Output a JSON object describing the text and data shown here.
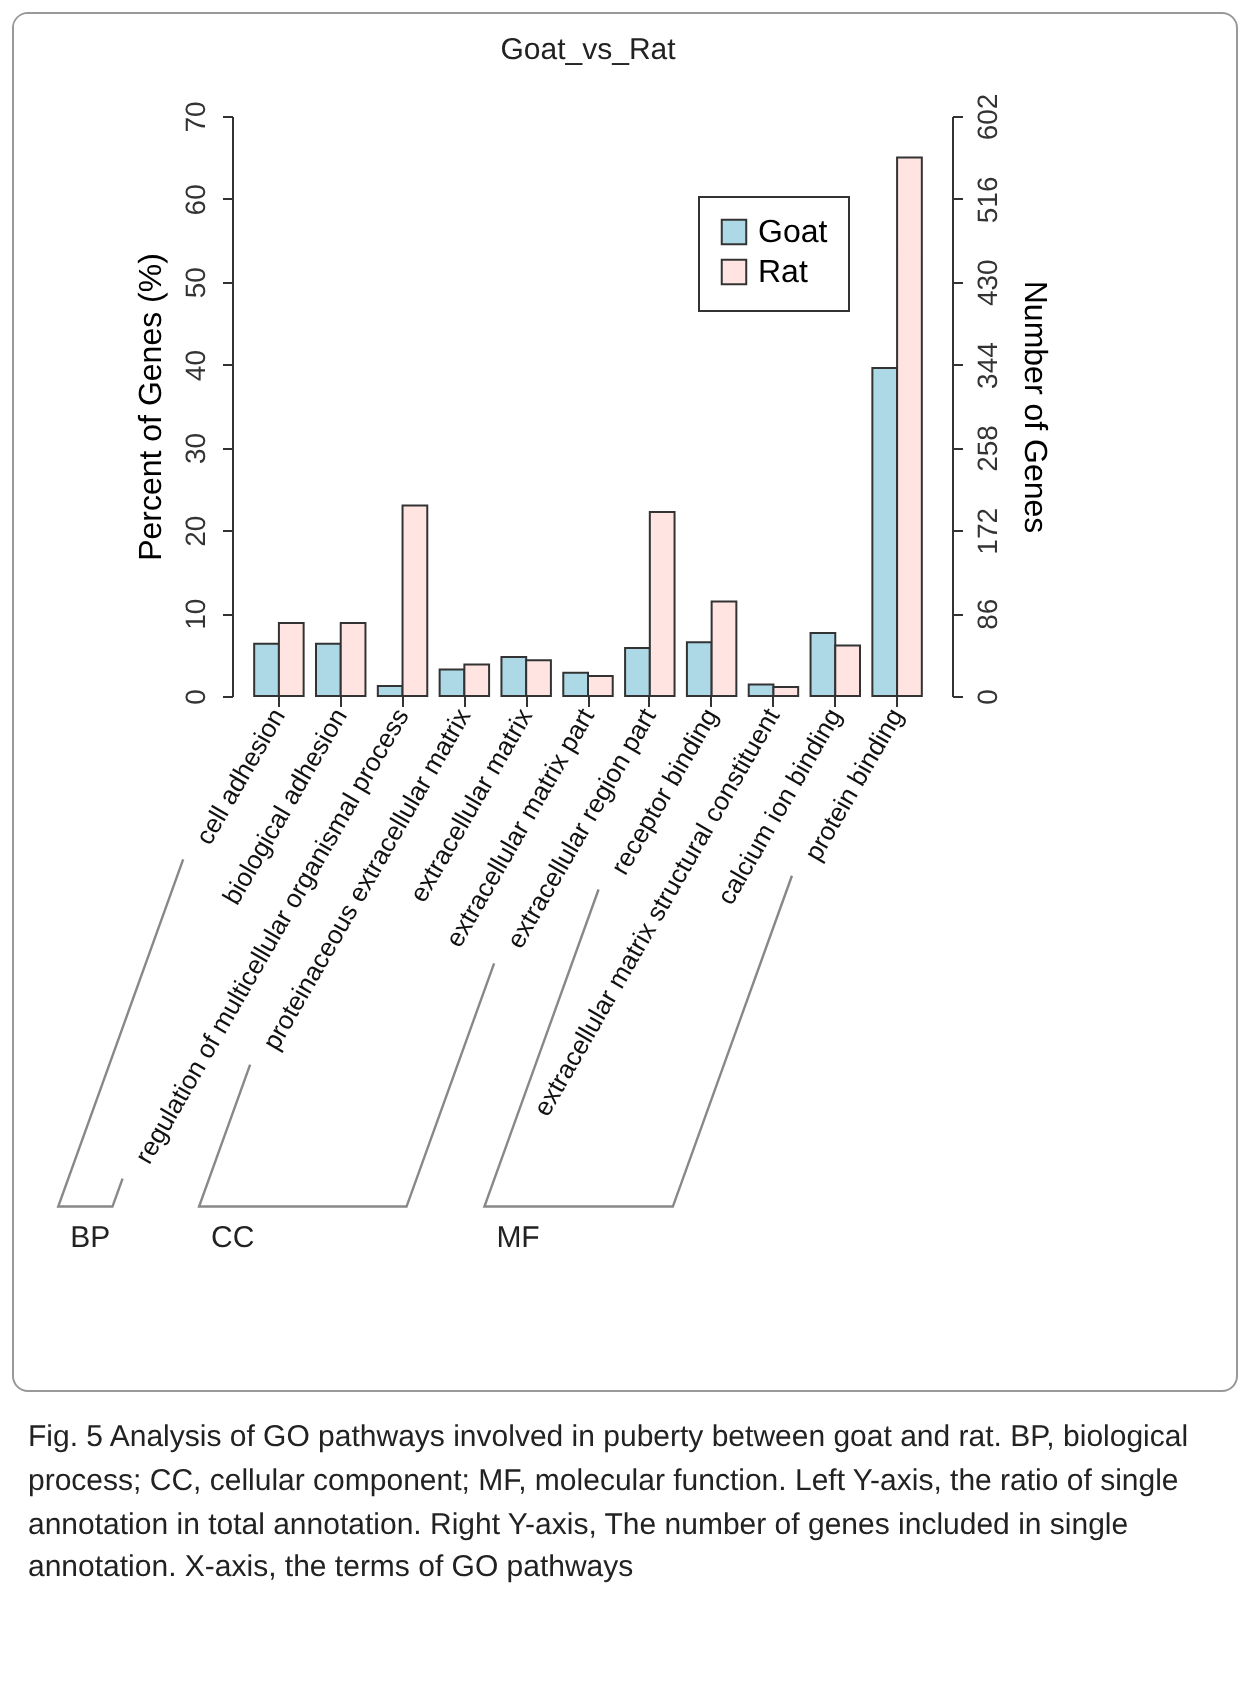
{
  "chart_data": {
    "type": "bar",
    "title": "Goat_vs_Rat",
    "categories": [
      "cell adhesion",
      "biological adhesion",
      "regulation of multicellular organismal process",
      "proteinaceous extracellular matrix",
      "extracellular matrix",
      "extracellular matrix part",
      "extracellular region part",
      "receptor binding",
      "extracellular matrix structural constituent",
      "calcium ion binding",
      "protein binding"
    ],
    "series": [
      {
        "name": "Goat",
        "color": "#add8e6",
        "values": [
          6.3,
          6.3,
          1.2,
          3.2,
          4.7,
          2.8,
          5.8,
          6.5,
          1.4,
          7.6,
          39.6
        ]
      },
      {
        "name": "Rat",
        "color": "#ffe4e1",
        "values": [
          8.8,
          8.8,
          23.0,
          3.8,
          4.3,
          2.4,
          22.2,
          11.4,
          1.1,
          6.1,
          65.0
        ]
      }
    ],
    "ylabel": "Percent of Genes (%)",
    "ylim": [
      0,
      70
    ],
    "yticks": [
      0,
      10,
      20,
      30,
      40,
      50,
      60,
      70
    ],
    "y2label": "Number of Genes",
    "y2lim": [
      0,
      602
    ],
    "y2ticks": [
      0,
      86,
      172,
      258,
      344,
      430,
      516,
      602
    ],
    "legend": "top right",
    "grid": false,
    "annotations": [
      "BP",
      "CC",
      "MF",
      "Fig. 5 Analysis of GO pathways involved in puberty between goat and rat. BP, biological process; CC, cellular component; MF, molecular function. Left Y-axis, the ratio of single annotation in total annotation. Right Y-axis, The number of genes included in single annotation. X-axis, the terms of GO pathways"
    ]
  }
}
